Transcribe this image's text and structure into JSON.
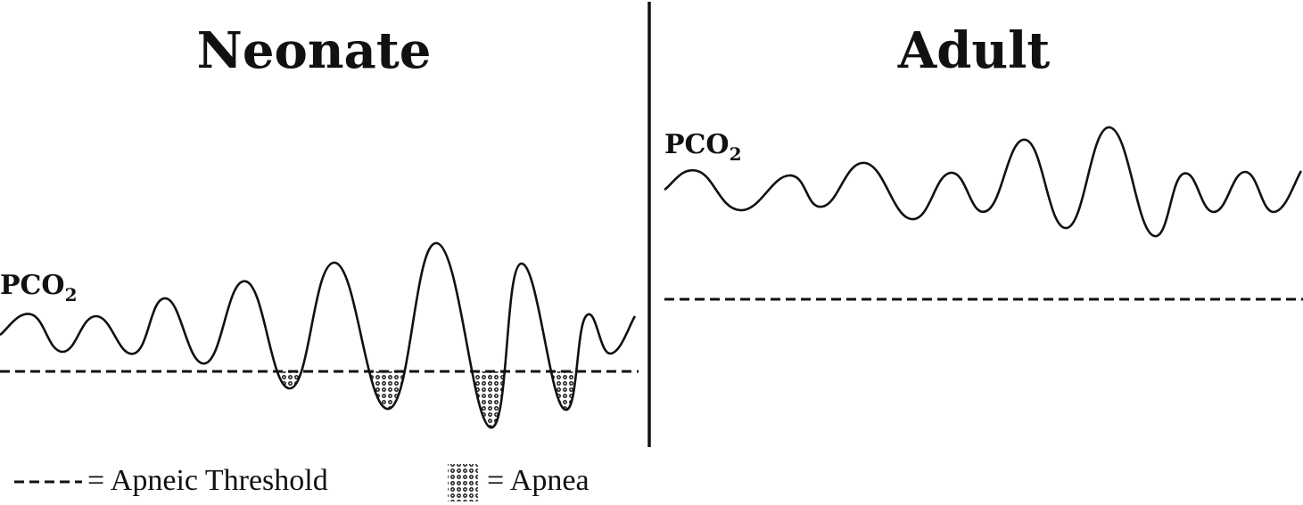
{
  "neonate": {
    "title": "Neonate",
    "pco2_label": "PCO",
    "pco2_subscript": "2"
  },
  "adult": {
    "title": "Adult",
    "pco2_label": "PCO",
    "pco2_subscript": "2"
  },
  "legend": {
    "threshold_text": "= Apneic Threshold",
    "apnea_text": "= Apnea"
  },
  "colors": {
    "ink": "#111111",
    "background": "#ffffff"
  }
}
